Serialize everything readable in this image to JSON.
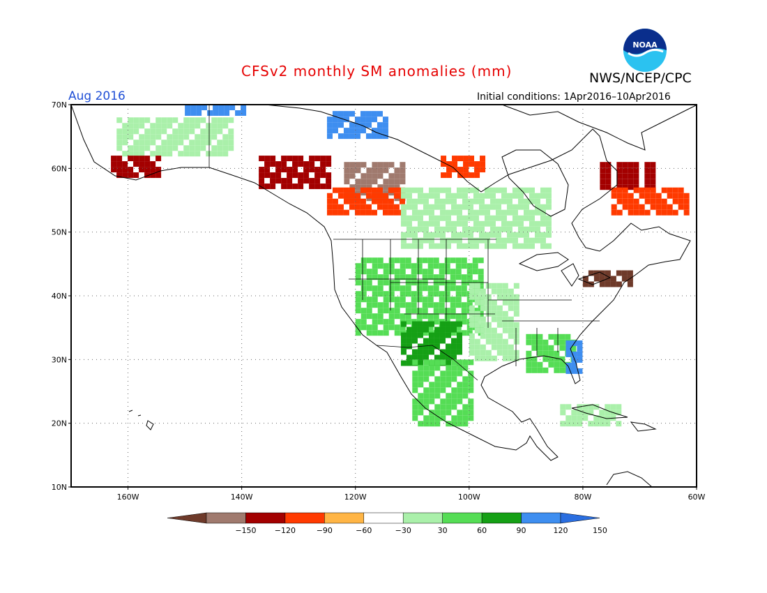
{
  "header": {
    "title": "CFSv2 monthly SM anomalies (mm)",
    "title_color": "#e60000",
    "org": "NWS/NCEP/CPC",
    "month": "Aug 2016",
    "month_color": "#1f4fd6",
    "initial_conditions": "Initial conditions: 1Apr2016–10Apr2016",
    "logo_text": "NOAA"
  },
  "map": {
    "projection": "equirectangular",
    "lon_range": [
      -170,
      -60
    ],
    "lat_range": [
      10,
      70
    ],
    "lat_ticks": [
      "70N",
      "60N",
      "50N",
      "40N",
      "30N",
      "20N",
      "10N"
    ],
    "lon_ticks": [
      "160W",
      "140W",
      "120W",
      "100W",
      "80W",
      "60W"
    ],
    "grid": "dotted",
    "regions": [
      {
        "name": "arctic-coast-wet",
        "class": 150,
        "lon": [
          -150,
          -140
        ],
        "lat": [
          69,
          70
        ]
      },
      {
        "name": "yukon-wet",
        "class": 150,
        "lon": [
          -125,
          -115
        ],
        "lat": [
          65,
          69
        ]
      },
      {
        "name": "alaska-mixed-green",
        "class": 60,
        "lon": [
          -162,
          -142
        ],
        "lat": [
          62,
          68
        ]
      },
      {
        "name": "alaska-dry",
        "class": -90,
        "lon": [
          -163,
          -155
        ],
        "lat": [
          59,
          62
        ]
      },
      {
        "name": "bc-dry",
        "class": -90,
        "lon": [
          -137,
          -125
        ],
        "lat": [
          57,
          62
        ]
      },
      {
        "name": "alberta-very-dry",
        "class": -120,
        "lon": [
          -122,
          -112
        ],
        "lat": [
          55,
          61
        ]
      },
      {
        "name": "alberta-dry-orange",
        "class": -60,
        "lon": [
          -125,
          -112
        ],
        "lat": [
          53,
          57
        ]
      },
      {
        "name": "hudson-dry",
        "class": -60,
        "lon": [
          -105,
          -98
        ],
        "lat": [
          59,
          62
        ]
      },
      {
        "name": "labrador-dry",
        "class": -90,
        "lon": [
          -77,
          -68
        ],
        "lat": [
          57,
          61
        ]
      },
      {
        "name": "labrador-dry-2",
        "class": -60,
        "lon": [
          -75,
          -62
        ],
        "lat": [
          53,
          57
        ]
      },
      {
        "name": "canada-wet-belt",
        "class": 60,
        "lon": [
          -112,
          -86
        ],
        "lat": [
          48,
          57
        ]
      },
      {
        "name": "west-us-wet",
        "class": 90,
        "lon": [
          -120,
          -98
        ],
        "lat": [
          34,
          46
        ]
      },
      {
        "name": "southwest-wet",
        "class": 120,
        "lon": [
          -112,
          -102
        ],
        "lat": [
          29,
          36
        ]
      },
      {
        "name": "plains-wet",
        "class": 60,
        "lon": [
          -100,
          -92
        ],
        "lat": [
          30,
          42
        ]
      },
      {
        "name": "southeast-mixed",
        "class": 90,
        "lon": [
          -90,
          -82
        ],
        "lat": [
          28,
          34
        ]
      },
      {
        "name": "florida-wet",
        "class": 150,
        "lon": [
          -83,
          -81
        ],
        "lat": [
          28,
          33
        ]
      },
      {
        "name": "northeast-dry",
        "class": -150,
        "lon": [
          -80,
          -72
        ],
        "lat": [
          42,
          44
        ]
      },
      {
        "name": "mexico-wet",
        "class": 90,
        "lon": [
          -110,
          -100
        ],
        "lat": [
          20,
          30
        ]
      },
      {
        "name": "cuba-wet",
        "class": 60,
        "lon": [
          -84,
          -74
        ],
        "lat": [
          20,
          23
        ]
      }
    ]
  },
  "legend": {
    "labels": [
      "−150",
      "−120",
      "−90",
      "−60",
      "−30",
      "30",
      "60",
      "90",
      "120",
      "150"
    ],
    "colors": [
      "#6e3a2a",
      "#a07a6e",
      "#a30000",
      "#ff3a00",
      "#ffb545",
      "#ffffff",
      "#aaf0aa",
      "#55dd55",
      "#15a015",
      "#3e8ef0",
      "#2a6ee0"
    ]
  }
}
